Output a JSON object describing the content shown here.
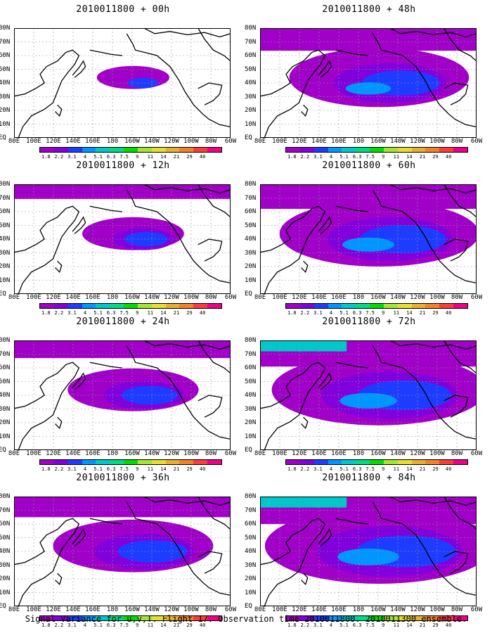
{
  "caption": "Signal Variance for u,v,T. Flight 17. Observation time 2010011800. 2010011300 ensemble.",
  "panels": [
    {
      "title": "2010011800 + 00h",
      "spread": 0.15
    },
    {
      "title": "2010011800 + 12h",
      "spread": 0.3
    },
    {
      "title": "2010011800 + 24h",
      "spread": 0.45
    },
    {
      "title": "2010011800 + 36h",
      "spread": 0.6
    },
    {
      "title": "2010011800 + 48h",
      "spread": 0.7
    },
    {
      "title": "2010011800 + 60h",
      "spread": 0.8
    },
    {
      "title": "2010011800 + 72h",
      "spread": 0.88
    },
    {
      "title": "2010011800 + 84h",
      "spread": 0.95
    }
  ],
  "y_axis_labels": [
    "80N",
    "70N",
    "60N",
    "50N",
    "40N",
    "30N",
    "20N",
    "10N",
    "EQ"
  ],
  "x_axis_labels": [
    "80E",
    "100E",
    "120E",
    "140E",
    "160E",
    "180",
    "160W",
    "140W",
    "120W",
    "100W",
    "80W",
    "60W"
  ],
  "legend": {
    "labels": [
      "1.8",
      "2.2",
      "3.1",
      "4",
      "5.1",
      "6.3",
      "7.5",
      "9",
      "11",
      "14",
      "21",
      "29",
      "40"
    ],
    "colors": [
      "#a000c8",
      "#8200dc",
      "#1e3cff",
      "#0096ff",
      "#00c8c8",
      "#00dc82",
      "#00dc00",
      "#a0e632",
      "#e6dc32",
      "#e6af2d",
      "#f08228",
      "#fa3c3c",
      "#f00082"
    ]
  }
}
